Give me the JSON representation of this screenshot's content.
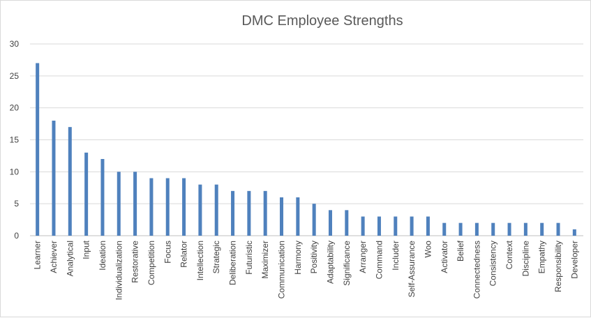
{
  "chart_data": {
    "type": "bar",
    "title": "DMC Employee Strengths",
    "xlabel": "",
    "ylabel": "",
    "ylim": [
      0,
      30
    ],
    "yticks": [
      0,
      5,
      10,
      15,
      20,
      25,
      30
    ],
    "grid": true,
    "legend": "none",
    "categories": [
      "Learner",
      "Achiever",
      "Analytical",
      "Input",
      "Ideation",
      "Individualization",
      "Restorative",
      "Competition",
      "Focus",
      "Relator",
      "Intellection",
      "Strategic",
      "Deliberation",
      "Futuristic",
      "Maximizer",
      "Communication",
      "Harmony",
      "Positivity",
      "Adaptability",
      "Significance",
      "Arranger",
      "Command",
      "Includer",
      "Self-Assurance",
      "Woo",
      "Activator",
      "Belief",
      "Connectedness",
      "Consistency",
      "Context",
      "Discipline",
      "Empathy",
      "Responsibility",
      "Developer"
    ],
    "values": [
      27,
      18,
      17,
      13,
      12,
      10,
      10,
      9,
      9,
      9,
      8,
      8,
      7,
      7,
      7,
      6,
      6,
      5,
      4,
      4,
      3,
      3,
      3,
      3,
      3,
      2,
      2,
      2,
      2,
      2,
      2,
      2,
      2,
      1
    ],
    "colors": {
      "bar": "#4f81bd"
    }
  }
}
